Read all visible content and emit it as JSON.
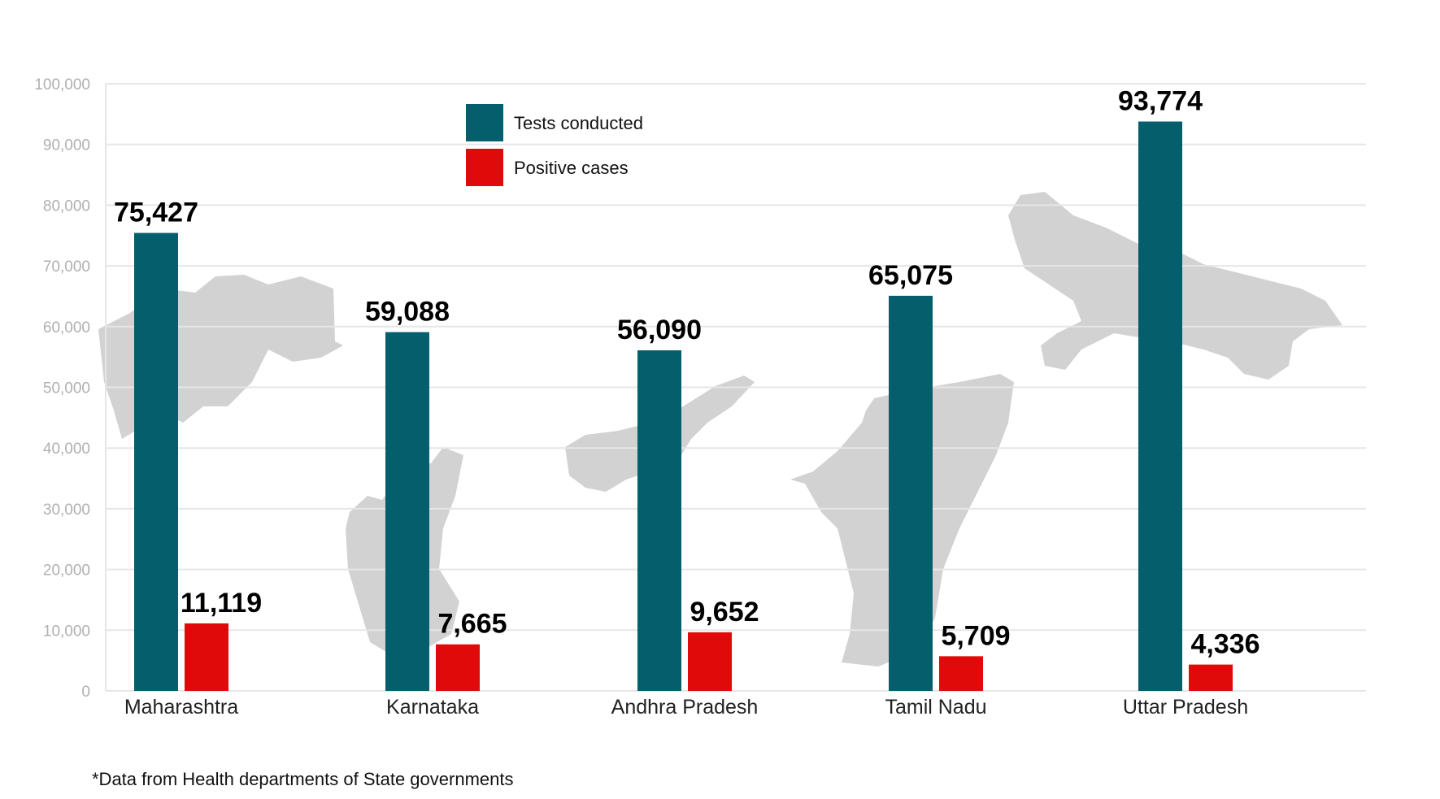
{
  "chart_data": {
    "type": "bar",
    "categories": [
      "Maharashtra",
      "Karnataka",
      "Andhra Pradesh",
      "Tamil Nadu",
      "Uttar Pradesh"
    ],
    "series": [
      {
        "name": "Tests conducted",
        "values": [
          75427,
          59088,
          56090,
          65075,
          93774
        ],
        "labels": [
          "75,427",
          "59,088",
          "56,090",
          "65,075",
          "93,774"
        ],
        "color": "#045e6b"
      },
      {
        "name": "Positive cases",
        "values": [
          11119,
          7665,
          9652,
          5709,
          4336
        ],
        "labels": [
          "11,119",
          "7,665",
          "9,652",
          "5,709",
          "4,336"
        ],
        "color": "#e00a0a"
      }
    ],
    "yticks": [
      "0",
      "10,000",
      "20,000",
      "30,000",
      "40,000",
      "50,000",
      "60,000",
      "70,000",
      "80,000",
      "90,000",
      "100,000"
    ],
    "ylim": [
      0,
      100000
    ],
    "grid": true,
    "legend": "top-center",
    "footnote": "*Data from Health departments of State governments"
  }
}
